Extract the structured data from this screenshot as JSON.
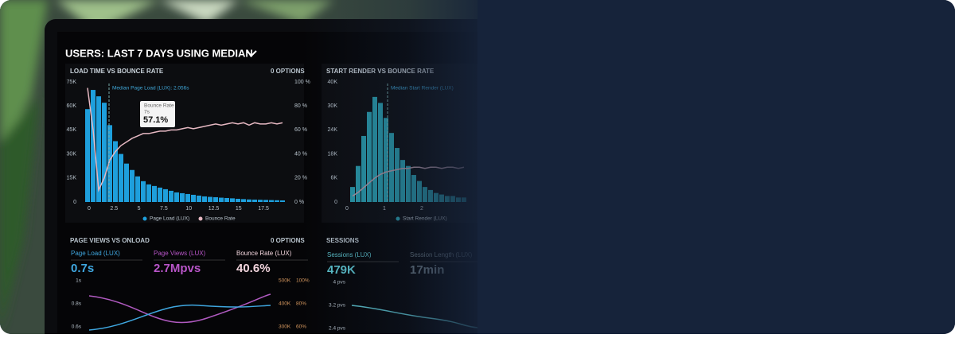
{
  "header": {
    "title": "USERS: LAST 7 DAYS USING MEDIAN"
  },
  "panels": [
    {
      "title": "LOAD TIME VS BOUNCE RATE",
      "options": "0  OPTIONS",
      "yticks": [
        "75K",
        "60K",
        "45K",
        "30K",
        "15K",
        "0"
      ],
      "y2ticks": [
        "100 %",
        "80 %",
        "60 %",
        "40 %",
        "20 %",
        "0 %"
      ],
      "xticks": [
        "0",
        "2.5",
        "5",
        "7.5",
        "10",
        "12.5",
        "15",
        "17.5"
      ],
      "annotation": "Median Page Load (LUX): 2.056s",
      "tooltip": {
        "label": "Bounce Rate",
        "sub": "7s",
        "value": "57.1%"
      },
      "legend": [
        "Page Load (LUX)",
        "Bounce Rate"
      ],
      "bars": [
        58,
        70,
        66,
        62,
        48,
        38,
        30,
        24,
        20,
        16,
        13,
        11,
        10,
        9,
        8,
        7,
        6,
        5.5,
        5,
        4.5,
        4,
        3.5,
        3.2,
        3,
        2.7,
        2.5,
        2.3,
        2,
        1.8,
        1.6,
        1.5,
        1.4,
        1.3,
        1.2,
        1.1,
        1
      ],
      "line": [
        95,
        60,
        10,
        20,
        35,
        42,
        47,
        50,
        53,
        55,
        57,
        57,
        58,
        59,
        59,
        60,
        60,
        61,
        62,
        61,
        62,
        63,
        64,
        65,
        64,
        65,
        66,
        65,
        66,
        64,
        66,
        65,
        65,
        66,
        65,
        66
      ]
    },
    {
      "title": "START RENDER VS BOUNCE RATE",
      "options": "0  OPTIONS",
      "yticks": [
        "40K",
        "30K",
        "24K",
        "18K",
        "6K",
        "0"
      ],
      "xticks": [
        "0",
        "1",
        "2"
      ],
      "annotation": "Median Start Render (LUX)",
      "legend": [
        "Start Render (LUX)"
      ],
      "bars": [
        5,
        12,
        22,
        30,
        35,
        33,
        28,
        23,
        18,
        14,
        12,
        9,
        7,
        5,
        4,
        3,
        2.5,
        2,
        2,
        1.5,
        1.5
      ],
      "line": [
        5,
        8,
        12,
        16,
        20,
        23,
        25,
        26,
        27,
        28,
        28,
        29,
        29,
        28,
        29,
        29,
        28,
        29,
        29,
        28,
        29
      ]
    }
  ],
  "metrics_left": {
    "title": "PAGE VIEWS VS ONLOAD",
    "options": "0  OPTIONS",
    "items": [
      {
        "label": "Page Load (LUX)",
        "value": "0.7s"
      },
      {
        "label": "Page Views (LUX)",
        "value": "2.7Mpvs"
      },
      {
        "label": "Bounce Rate (LUX)",
        "value": "40.6%"
      }
    ],
    "yticks": [
      "1s",
      "0.8s",
      "0.6s"
    ],
    "y2ticks": [
      "500K",
      "400K",
      "300K"
    ],
    "y3ticks": [
      "100%",
      "80%",
      "60%"
    ]
  },
  "metrics_right": {
    "title": "SESSIONS",
    "items": [
      {
        "label": "Sessions (LUX)",
        "value": "479K"
      },
      {
        "label": "Session Length (LUX)",
        "value": "17min"
      }
    ],
    "yticks": [
      "4 pvs",
      "3.2 pvs",
      "2.4 pvs"
    ]
  }
}
